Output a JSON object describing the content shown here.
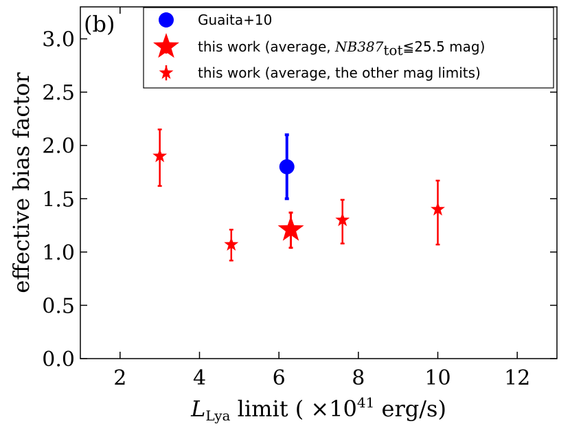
{
  "chart_data": {
    "type": "scatter",
    "panel_label": "(b)",
    "xlabel": {
      "main": "L",
      "sub": "Lya",
      "rest": " limit ( ×10",
      "sup": "41",
      "unit": " erg/s)"
    },
    "ylabel": "effective bias factor",
    "xlim": [
      1,
      13
    ],
    "ylim": [
      0,
      3.3
    ],
    "xticks": [
      "2",
      "4",
      "6",
      "8",
      "10",
      "12"
    ],
    "yticks": [
      "0.0",
      "0.5",
      "1.0",
      "1.5",
      "2.0",
      "2.5",
      "3.0"
    ],
    "legend_position": "top-right",
    "series": [
      {
        "name": "Guaita+10",
        "marker": "circle",
        "color": "#0000ff",
        "points": [
          {
            "x": 6.2,
            "y": 1.8,
            "yerr_low": 0.3,
            "yerr_high": 0.3
          }
        ]
      },
      {
        "name_prefix": "this work (average, ",
        "name_math": "NB387",
        "name_sub": "tot",
        "name_suffix": "≦25.5 mag)",
        "marker": "star-large",
        "color": "#ff0000",
        "points": [
          {
            "x": 6.3,
            "y": 1.21,
            "yerr_low": 0.17,
            "yerr_high": 0.16
          }
        ]
      },
      {
        "name": "this work (average, the other mag limits)",
        "marker": "star-small",
        "color": "#ff0000",
        "points": [
          {
            "x": 3.0,
            "y": 1.9,
            "yerr_low": 0.28,
            "yerr_high": 0.25
          },
          {
            "x": 4.8,
            "y": 1.07,
            "yerr_low": 0.15,
            "yerr_high": 0.14
          },
          {
            "x": 7.6,
            "y": 1.3,
            "yerr_low": 0.22,
            "yerr_high": 0.19
          },
          {
            "x": 10.0,
            "y": 1.4,
            "yerr_low": 0.33,
            "yerr_high": 0.27
          }
        ]
      }
    ]
  }
}
